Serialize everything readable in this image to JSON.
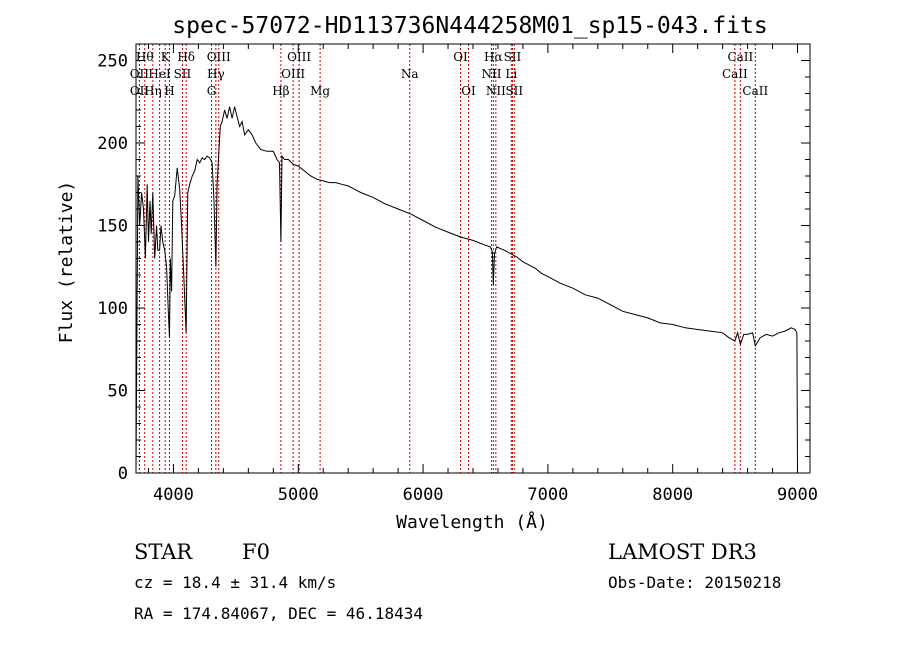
{
  "chart_data": {
    "type": "line",
    "title": "spec-57072-HD113736N444258M01_sp15-043.fits",
    "xlabel": "Wavelength (Å)",
    "ylabel": "Flux (relative)",
    "xlim": [
      3700,
      9100
    ],
    "ylim": [
      0,
      260
    ],
    "xticks": [
      4000,
      5000,
      6000,
      7000,
      8000,
      9000
    ],
    "yticks": [
      0,
      50,
      100,
      150,
      200,
      250
    ],
    "series": [
      {
        "name": "flux",
        "x": [
          3700,
          3715,
          3730,
          3745,
          3760,
          3775,
          3790,
          3800,
          3812,
          3822,
          3835,
          3850,
          3865,
          3875,
          3889,
          3900,
          3915,
          3930,
          3945,
          3960,
          3968,
          3975,
          3985,
          3995,
          4010,
          4030,
          4050,
          4065,
          4085,
          4101,
          4115,
          4130,
          4150,
          4170,
          4190,
          4210,
          4230,
          4250,
          4270,
          4290,
          4310,
          4325,
          4340,
          4350,
          4360,
          4375,
          4390,
          4410,
          4430,
          4450,
          4470,
          4490,
          4510,
          4530,
          4550,
          4570,
          4600,
          4630,
          4660,
          4700,
          4750,
          4800,
          4830,
          4850,
          4861,
          4870,
          4890,
          4920,
          4960,
          5000,
          5050,
          5100,
          5150,
          5200,
          5250,
          5300,
          5350,
          5400,
          5450,
          5500,
          5600,
          5700,
          5800,
          5900,
          6000,
          6100,
          6200,
          6300,
          6400,
          6500,
          6540,
          6555,
          6563,
          6572,
          6590,
          6650,
          6700,
          6750,
          6800,
          6850,
          6900,
          6950,
          7000,
          7100,
          7200,
          7300,
          7400,
          7500,
          7600,
          7700,
          7800,
          7900,
          8000,
          8100,
          8200,
          8300,
          8400,
          8450,
          8498,
          8520,
          8542,
          8570,
          8600,
          8640,
          8662,
          8700,
          8750,
          8800,
          8850,
          8900,
          8950,
          8980,
          8995,
          9000
        ],
        "y": [
          0,
          180,
          150,
          170,
          160,
          130,
          175,
          140,
          165,
          145,
          170,
          130,
          150,
          135,
          135,
          150,
          140,
          135,
          125,
          95,
          82,
          130,
          110,
          165,
          168,
          185,
          172,
          150,
          115,
          85,
          170,
          175,
          180,
          183,
          190,
          188,
          191,
          190,
          192,
          191,
          188,
          165,
          125,
          175,
          190,
          210,
          213,
          220,
          215,
          222,
          215,
          222,
          216,
          210,
          213,
          205,
          208,
          205,
          200,
          196,
          195,
          195,
          190,
          188,
          140,
          192,
          190,
          190,
          187,
          186,
          183,
          180,
          178,
          177,
          176,
          176,
          175,
          174,
          172,
          170,
          167,
          163,
          160,
          157,
          153,
          149,
          146,
          143,
          141,
          138,
          137,
          134,
          114,
          133,
          137,
          135,
          133,
          131,
          128,
          126,
          124,
          121,
          119,
          115,
          112,
          108,
          106,
          102,
          98,
          96,
          94,
          91,
          90,
          88,
          87,
          86,
          85,
          82,
          80,
          85,
          78,
          84,
          84,
          85,
          77,
          82,
          84,
          83,
          85,
          86,
          88,
          87,
          85,
          0
        ]
      }
    ],
    "lines": [
      {
        "wl": 3727,
        "label": "OII",
        "row": 2
      },
      {
        "wl": 3728,
        "label": "OII",
        "row": 3
      },
      {
        "wl": 3770,
        "label": "Hθ",
        "row": 1
      },
      {
        "wl": 3835,
        "label": "Hη",
        "row": 3
      },
      {
        "wl": 3889,
        "label": "HeI",
        "row": 2
      },
      {
        "wl": 3934,
        "label": "K",
        "row": 1
      },
      {
        "wl": 3968,
        "label": "H",
        "row": 3
      },
      {
        "wl": 4072,
        "label": "SII",
        "row": 2
      },
      {
        "wl": 4102,
        "label": "Hδ",
        "row": 1
      },
      {
        "wl": 4305,
        "label": "G",
        "row": 3
      },
      {
        "wl": 4340,
        "label": "Hγ",
        "row": 2
      },
      {
        "wl": 4363,
        "label": "OIII",
        "row": 1
      },
      {
        "wl": 4861,
        "label": "Hβ",
        "row": 3
      },
      {
        "wl": 4959,
        "label": "OIII",
        "row": 2
      },
      {
        "wl": 5007,
        "label": "OIII",
        "row": 1
      },
      {
        "wl": 5175,
        "label": "Mg",
        "row": 3
      },
      {
        "wl": 5893,
        "label": "Na",
        "row": 2
      },
      {
        "wl": 6300,
        "label": "OI",
        "row": 1
      },
      {
        "wl": 6364,
        "label": "OI",
        "row": 3
      },
      {
        "wl": 6548,
        "label": "NII",
        "row": 2
      },
      {
        "wl": 6563,
        "label": "Hα",
        "row": 1
      },
      {
        "wl": 6583,
        "label": "NII",
        "row": 3
      },
      {
        "wl": 6707,
        "label": "Li",
        "row": 2
      },
      {
        "wl": 6716,
        "label": "SII",
        "row": 1
      },
      {
        "wl": 6731,
        "label": "SII",
        "row": 3
      },
      {
        "wl": 8498,
        "label": "CaII",
        "row": 2
      },
      {
        "wl": 8542,
        "label": "CaII",
        "row": 1
      },
      {
        "wl": 8662,
        "label": "CaII",
        "row": 3
      }
    ]
  },
  "info": {
    "class": "STAR",
    "subclass": "F0",
    "cz": "cz = 18.4 ± 31.4 km/s",
    "coords": "RA = 174.84067, DEC =  46.18434",
    "survey": "LAMOST DR3",
    "obs_date": "Obs-Date: 20150218"
  },
  "colors": {
    "axes": "#000000",
    "spectrum": "#000000",
    "marker": "#cc0000"
  }
}
